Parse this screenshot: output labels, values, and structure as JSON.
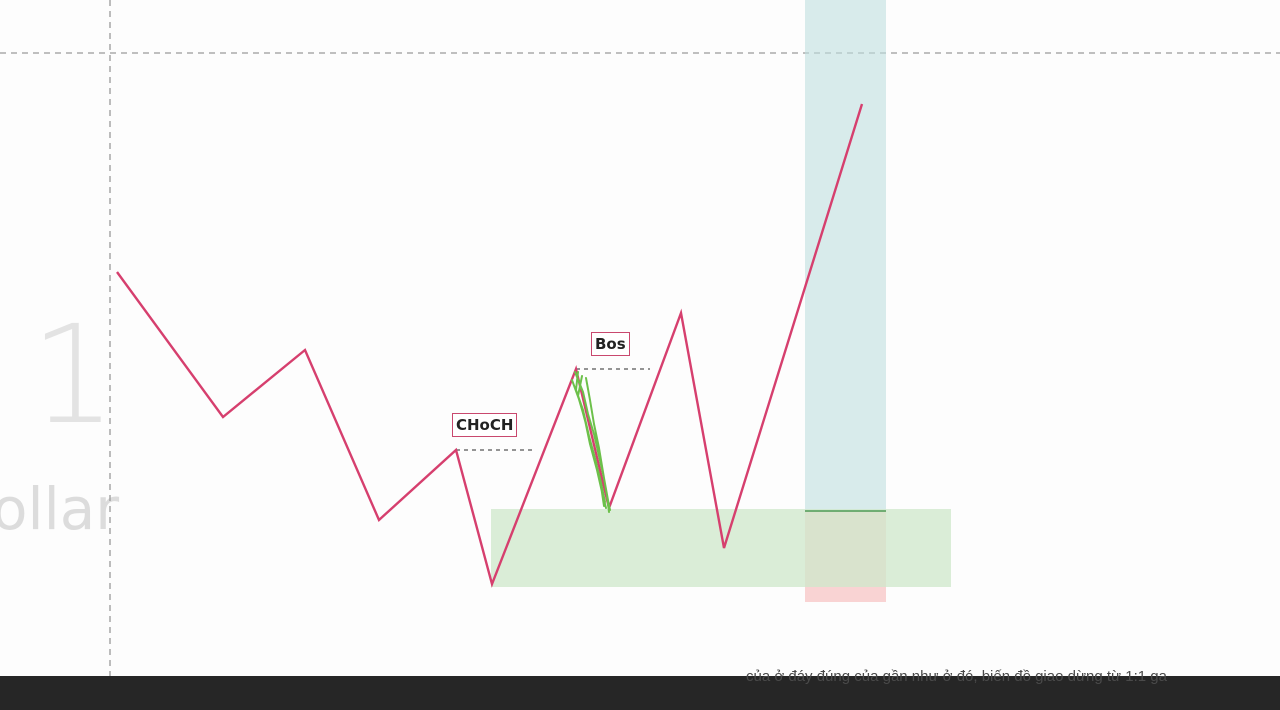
{
  "diagram": {
    "watermark_number": "1",
    "watermark_word": "ollar",
    "labels": {
      "choch": "CHoCH",
      "bos": "Bos"
    },
    "subtitle": "của ở đáy đúng của gần như ở đó, biến đồ giao dừng từ 1:1 ga"
  },
  "colors": {
    "price_line": "#d63f6e",
    "dashed_level": "#555555",
    "demand_zone": "#cfe8cc",
    "target_zone": "#bfe0e0",
    "stop_zone": "#f7c4c4",
    "annotation_scribble": "#6cc04a",
    "bottom_bar": "#262626"
  }
}
